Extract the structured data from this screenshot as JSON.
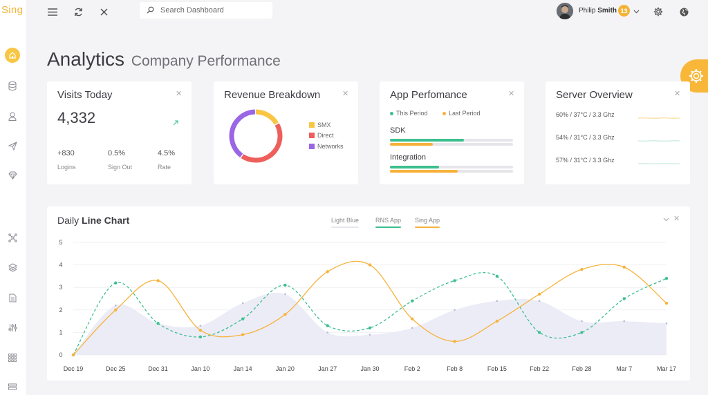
{
  "app": {
    "logo": "Sing"
  },
  "sidebar": {
    "items": [
      {
        "icon": "home-icon",
        "active": true
      },
      {
        "icon": "database-icon"
      },
      {
        "icon": "user-icon"
      },
      {
        "icon": "send-icon"
      },
      {
        "icon": "diamond-icon"
      },
      {
        "icon": "network-icon"
      },
      {
        "icon": "layers-icon"
      },
      {
        "icon": "document-icon"
      },
      {
        "icon": "sliders-icon"
      },
      {
        "icon": "grid-icon"
      },
      {
        "icon": "stack-icon"
      }
    ]
  },
  "header": {
    "search_placeholder": "Search Dashboard",
    "user_first": "Philip",
    "user_last": "Smith",
    "badge": "13"
  },
  "page": {
    "title": "Analytics",
    "subtitle": "Company Performance"
  },
  "visits": {
    "title": "Visits Today",
    "value": "4,332",
    "stats": [
      {
        "value": "+830",
        "label": "Logins"
      },
      {
        "value": "0.5%",
        "label": "Sign Out"
      },
      {
        "value": "4.5%",
        "label": "Rate"
      }
    ]
  },
  "revenue": {
    "title": "Revenue Breakdown",
    "legend": [
      {
        "label": "SMX",
        "color": "#f9c644"
      },
      {
        "label": "Direct",
        "color": "#ee5f5b"
      },
      {
        "label": "Networks",
        "color": "#9a66e4"
      }
    ],
    "shares": [
      0.17,
      0.43,
      0.4
    ]
  },
  "performance": {
    "title": "App Perfomance",
    "legend_this": "This Period",
    "legend_last": "Last Period",
    "color_this": "#3cbf8f",
    "color_last": "#f7b23b",
    "rows": [
      {
        "label": "SDK",
        "this_period": 0.6,
        "last_period": 0.35
      },
      {
        "label": "Integration",
        "this_period": 0.4,
        "last_period": 0.55
      }
    ]
  },
  "server": {
    "title": "Server Overview",
    "rows": [
      {
        "text": "60% / 37°C / 3.3 Ghz"
      },
      {
        "text": "54% / 31°C / 3.3 Ghz"
      },
      {
        "text": "57% / 31°C / 3.3 Ghz"
      }
    ]
  },
  "daily_chart": {
    "title_prefix": "Daily",
    "title_bold": "Line Chart",
    "legend": [
      {
        "label": "Light Blue",
        "color": "#e6e6ee"
      },
      {
        "label": "RNS App",
        "color": "#3cbf8f"
      },
      {
        "label": "Sing App",
        "color": "#f7b23b"
      }
    ]
  },
  "chart_data": {
    "type": "line",
    "title": "Daily Line Chart",
    "x": [
      "Dec 19",
      "Dec 25",
      "Dec 31",
      "Jan 10",
      "Jan 14",
      "Jan 20",
      "Jan 27",
      "Jan 30",
      "Feb 2",
      "Feb 8",
      "Feb 15",
      "Feb 22",
      "Feb 28",
      "Mar 7",
      "Mar 17"
    ],
    "ylim": [
      0,
      5
    ],
    "yticks": [
      0,
      1,
      2,
      3,
      4,
      5
    ],
    "grid": true,
    "series": [
      {
        "name": "Light Blue",
        "style": "area",
        "color": "#ececf7",
        "values": [
          0.0,
          2.2,
          1.4,
          1.3,
          2.3,
          2.7,
          1.0,
          0.9,
          1.2,
          2.0,
          2.4,
          2.4,
          1.5,
          1.5,
          1.4
        ]
      },
      {
        "name": "RNS App",
        "style": "dashed",
        "color": "#3cbf8f",
        "values": [
          0.0,
          3.2,
          1.4,
          0.8,
          1.6,
          3.1,
          1.3,
          1.2,
          2.4,
          3.3,
          3.5,
          1.0,
          1.0,
          2.5,
          3.4
        ]
      },
      {
        "name": "Sing App",
        "style": "solid",
        "color": "#f7b23b",
        "values": [
          0.0,
          2.0,
          3.3,
          1.1,
          0.9,
          1.8,
          3.7,
          4.0,
          1.6,
          0.6,
          1.5,
          2.7,
          3.8,
          3.9,
          2.3
        ]
      }
    ]
  }
}
